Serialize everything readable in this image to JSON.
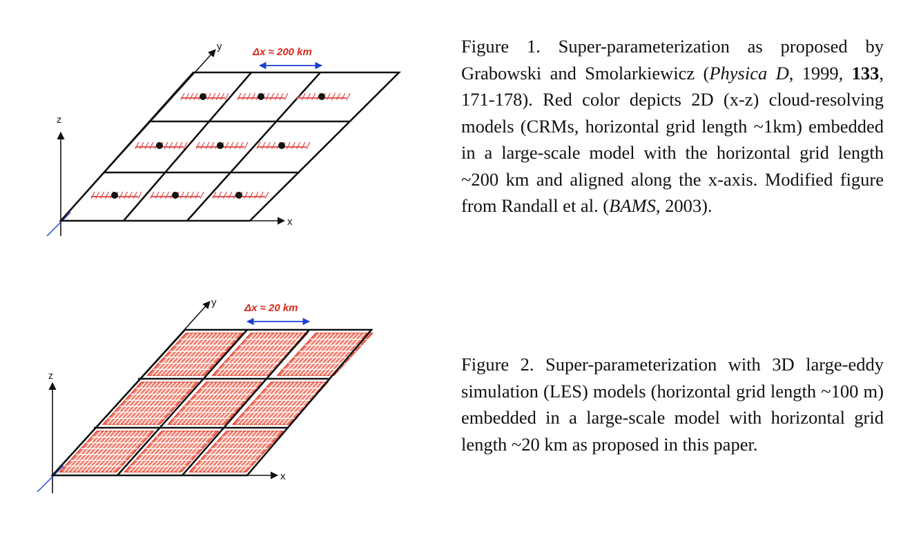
{
  "figure1": {
    "axis_labels": {
      "x": "x",
      "y": "y",
      "z": "z"
    },
    "dx_label": "Δx ≈ 200 km",
    "caption": {
      "part1": "Figure 1. Super-parameterization as proposed by Grabowski and Smolarkiewicz (",
      "journal": "Physica D",
      "part2": ", 1999, ",
      "volume": "133",
      "part3": ", 171-178). Red color depicts 2D (x-z) cloud-resolving models (CRMs, horizontal grid length ~1km) embedded in a large-scale model with the horizontal grid length ~200 km and aligned along the x-axis. Modified figure from Randall et al. (",
      "journal2": "BAMS",
      "part4": ", 2003)."
    }
  },
  "figure2": {
    "axis_labels": {
      "x": "x",
      "y": "y",
      "z": "z"
    },
    "dx_label": "Δx ≈ 20 km",
    "caption": "Figure 2. Super-parameterization with 3D large-eddy simulation (LES) models (horizontal grid length ~100 m) embedded in a large-scale model with horizontal grid length ~20 km as proposed in this paper."
  },
  "colors": {
    "grid": "#111111",
    "crm": "#e05050",
    "les": "#e0402a",
    "les_fill": "#f08070",
    "arrow": "#1a3fd6",
    "label": "#d42a1a",
    "axis": "#111111"
  }
}
